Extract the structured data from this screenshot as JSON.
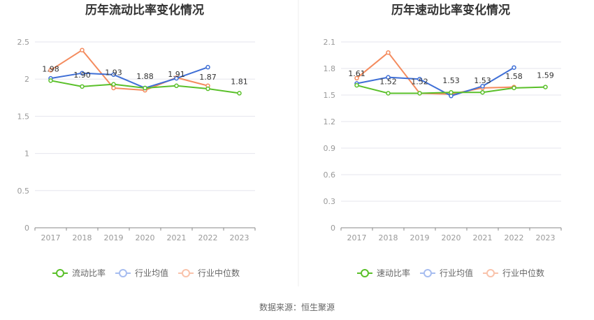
{
  "source_label": "数据来源：恒生聚源",
  "colors": {
    "main": "#5ac02a",
    "avg": "#3f6fd6",
    "median": "#f48b5e"
  },
  "legend_hollow_colors": {
    "avg": "#a7bdf0",
    "median": "#f9c3ab"
  },
  "chart_data": [
    {
      "type": "line",
      "title": "历年流动比率变化情况",
      "xlabel": "",
      "ylabel": "",
      "categories": [
        "2017",
        "2018",
        "2019",
        "2020",
        "2021",
        "2022",
        "2023"
      ],
      "ylim": [
        0,
        2.5
      ],
      "yticks": [
        0,
        0.5,
        1,
        1.5,
        2,
        2.5
      ],
      "ytick_labels": [
        "0",
        "0.5",
        "1",
        "1.5",
        "2",
        "2.5"
      ],
      "grid": true,
      "legend_position": "bottom",
      "series": [
        {
          "name": "流动比率",
          "key": "main",
          "values": [
            1.98,
            1.9,
            1.93,
            1.88,
            1.91,
            1.87,
            1.81
          ]
        },
        {
          "name": "行业均值",
          "key": "avg",
          "values": [
            2.01,
            2.08,
            2.06,
            1.88,
            2.01,
            2.16,
            null
          ]
        },
        {
          "name": "行业中位数",
          "key": "median",
          "values": [
            2.12,
            2.39,
            1.88,
            1.85,
            2.02,
            1.91,
            null
          ]
        }
      ],
      "data_labels": [
        "1.98",
        "1.90",
        "1.93",
        "1.88",
        "1.91",
        "1.87",
        "1.81"
      ]
    },
    {
      "type": "line",
      "title": "历年速动比率变化情况",
      "xlabel": "",
      "ylabel": "",
      "categories": [
        "2017",
        "2018",
        "2019",
        "2020",
        "2021",
        "2022",
        "2023"
      ],
      "ylim": [
        0,
        2.1
      ],
      "yticks": [
        0,
        0.3,
        0.6,
        0.9,
        1.2,
        1.5,
        1.8,
        2.1
      ],
      "ytick_labels": [
        "0",
        "0.3",
        "0.6",
        "0.9",
        "1.2",
        "1.5",
        "1.8",
        "2.1"
      ],
      "grid": true,
      "legend_position": "bottom",
      "series": [
        {
          "name": "速动比率",
          "key": "main",
          "values": [
            1.61,
            1.52,
            1.52,
            1.53,
            1.53,
            1.58,
            1.59
          ]
        },
        {
          "name": "行业均值",
          "key": "avg",
          "values": [
            1.63,
            1.7,
            1.68,
            1.49,
            1.6,
            1.81,
            null
          ]
        },
        {
          "name": "行业中位数",
          "key": "median",
          "values": [
            1.69,
            1.98,
            1.52,
            1.51,
            1.58,
            1.59,
            null
          ]
        }
      ],
      "data_labels": [
        "1.61",
        "1.52",
        "1.52",
        "1.53",
        "1.53",
        "1.58",
        "1.59"
      ]
    }
  ]
}
